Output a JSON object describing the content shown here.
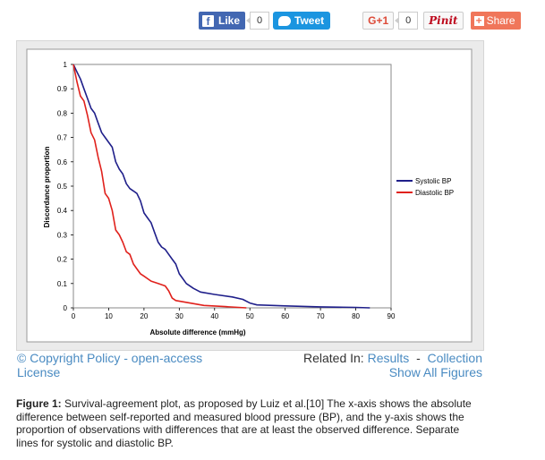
{
  "share": {
    "like_label": "Like",
    "like_count": "0",
    "tweet_label": "Tweet",
    "gplus_label": "G+1",
    "gplus_count": "0",
    "pin_label": "Pinit",
    "share_label": "Share"
  },
  "links": {
    "copyright": "© Copyright Policy - open-access License",
    "related_label": "Related In:",
    "results": "Results",
    "separator": "-",
    "collection": "Collection",
    "show_all": "Show All Figures"
  },
  "caption": {
    "label": "Figure 1:",
    "text": " Survival-agreement plot, as proposed by Luiz et al.[10] The x-axis shows the absolute difference between self-reported and measured blood pressure (BP), and the y-axis shows the proportion of observations with differences that are at least the observed difference. Separate lines for systolic and diastolic BP."
  },
  "colors": {
    "systolic": "#1f1f8a",
    "diastolic": "#e0211c"
  },
  "chart_data": {
    "type": "line",
    "title": "",
    "xlabel": "Absolute difference (mmHg)",
    "ylabel": "Discordance proportion",
    "xlim": [
      0,
      90
    ],
    "ylim": [
      0,
      1
    ],
    "xticks": [
      "0",
      "10",
      "20",
      "30",
      "40",
      "50",
      "60",
      "70",
      "80",
      "90"
    ],
    "yticks": [
      "0",
      "0.1",
      "0.2",
      "0.3",
      "0.4",
      "0.5",
      "0.6",
      "0.7",
      "0.8",
      "0.9",
      "1"
    ],
    "grid": false,
    "legend_position": "right",
    "series": [
      {
        "name": "Systolic BP",
        "points": [
          [
            0,
            1
          ],
          [
            1,
            0.97
          ],
          [
            2,
            0.94
          ],
          [
            3,
            0.9
          ],
          [
            4,
            0.86
          ],
          [
            5,
            0.82
          ],
          [
            6,
            0.8
          ],
          [
            7,
            0.76
          ],
          [
            8,
            0.72
          ],
          [
            9,
            0.7
          ],
          [
            10,
            0.68
          ],
          [
            11,
            0.66
          ],
          [
            12,
            0.6
          ],
          [
            13,
            0.57
          ],
          [
            14,
            0.55
          ],
          [
            15,
            0.51
          ],
          [
            16,
            0.49
          ],
          [
            17,
            0.48
          ],
          [
            18,
            0.47
          ],
          [
            19,
            0.44
          ],
          [
            20,
            0.39
          ],
          [
            21,
            0.37
          ],
          [
            22,
            0.35
          ],
          [
            23,
            0.31
          ],
          [
            24,
            0.27
          ],
          [
            25,
            0.25
          ],
          [
            26,
            0.24
          ],
          [
            27,
            0.22
          ],
          [
            28,
            0.2
          ],
          [
            29,
            0.18
          ],
          [
            30,
            0.14
          ],
          [
            31,
            0.12
          ],
          [
            32,
            0.1
          ],
          [
            34,
            0.08
          ],
          [
            36,
            0.065
          ],
          [
            40,
            0.055
          ],
          [
            45,
            0.045
          ],
          [
            48,
            0.035
          ],
          [
            50,
            0.02
          ],
          [
            52,
            0.012
          ],
          [
            60,
            0.008
          ],
          [
            70,
            0.004
          ],
          [
            80,
            0.002
          ],
          [
            84,
            0
          ]
        ]
      },
      {
        "name": "Diastolic BP",
        "points": [
          [
            0,
            1
          ],
          [
            1,
            0.93
          ],
          [
            2,
            0.87
          ],
          [
            3,
            0.85
          ],
          [
            4,
            0.79
          ],
          [
            5,
            0.72
          ],
          [
            6,
            0.69
          ],
          [
            7,
            0.62
          ],
          [
            8,
            0.56
          ],
          [
            9,
            0.47
          ],
          [
            10,
            0.45
          ],
          [
            11,
            0.4
          ],
          [
            12,
            0.32
          ],
          [
            13,
            0.3
          ],
          [
            14,
            0.27
          ],
          [
            15,
            0.23
          ],
          [
            16,
            0.22
          ],
          [
            17,
            0.18
          ],
          [
            18,
            0.16
          ],
          [
            19,
            0.14
          ],
          [
            20,
            0.13
          ],
          [
            22,
            0.11
          ],
          [
            24,
            0.1
          ],
          [
            26,
            0.09
          ],
          [
            27,
            0.07
          ],
          [
            28,
            0.04
          ],
          [
            29,
            0.03
          ],
          [
            33,
            0.02
          ],
          [
            37,
            0.01
          ],
          [
            43,
            0.005
          ],
          [
            49,
            0
          ]
        ]
      }
    ]
  }
}
